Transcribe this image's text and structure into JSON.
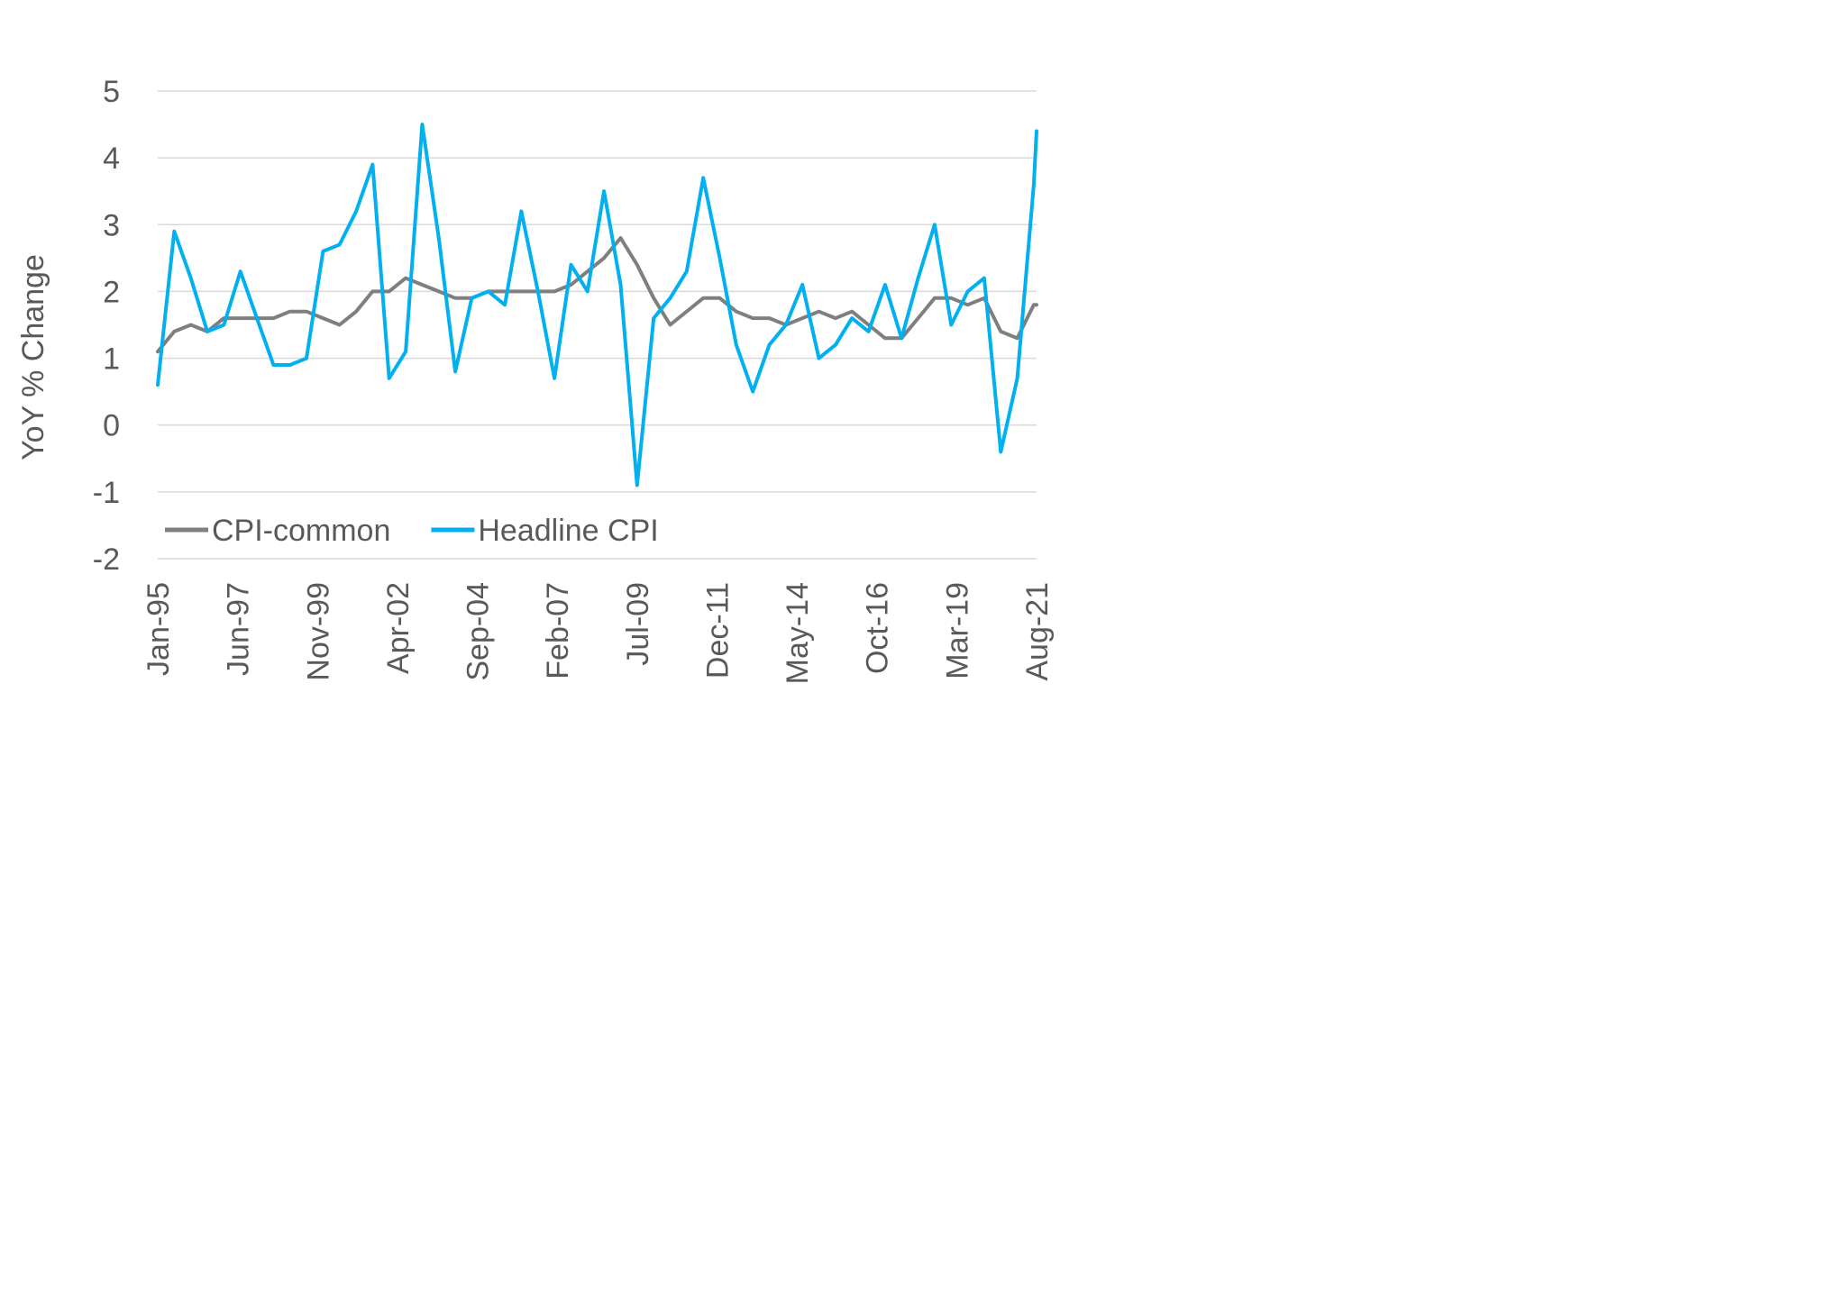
{
  "chart_data": {
    "type": "line",
    "ylabel": "YoY % Change",
    "xlabel": "",
    "ylim": [
      -2,
      5
    ],
    "yticks": [
      "-2",
      "-1",
      "0",
      "1",
      "2",
      "3",
      "4",
      "5"
    ],
    "x_start": "Jan-95",
    "x_end": "Aug-21",
    "x_tick_labels": [
      "Jan-95",
      "Jun-97",
      "Nov-99",
      "Apr-02",
      "Sep-04",
      "Feb-07",
      "Jul-09",
      "Dec-11",
      "May-14",
      "Oct-16",
      "Mar-19",
      "Aug-21"
    ],
    "grid": true,
    "legend_position": "bottom-left",
    "x": [
      "Jan-95",
      "Jul-95",
      "Jan-96",
      "Jul-96",
      "Jan-97",
      "Jul-97",
      "Jan-98",
      "Jul-98",
      "Jan-99",
      "Jul-99",
      "Jan-00",
      "Jul-00",
      "Jan-01",
      "Jul-01",
      "Jan-02",
      "Jul-02",
      "Jan-03",
      "Jul-03",
      "Jan-04",
      "Jul-04",
      "Jan-05",
      "Jul-05",
      "Jan-06",
      "Jul-06",
      "Jan-07",
      "Jul-07",
      "Jan-08",
      "Jul-08",
      "Jan-09",
      "Jul-09",
      "Jan-10",
      "Jul-10",
      "Jan-11",
      "Jul-11",
      "Jan-12",
      "Jul-12",
      "Jan-13",
      "Jul-13",
      "Jan-14",
      "Jul-14",
      "Jan-15",
      "Jul-15",
      "Jan-16",
      "Jul-16",
      "Jan-17",
      "Jul-17",
      "Jan-18",
      "Jul-18",
      "Jan-19",
      "Jul-19",
      "Jan-20",
      "Jul-20",
      "Jan-21",
      "Jul-21",
      "Aug-21"
    ],
    "series": [
      {
        "name": "CPI-common",
        "color": "#7f7f7f",
        "values": [
          1.1,
          1.4,
          1.5,
          1.4,
          1.6,
          1.6,
          1.6,
          1.6,
          1.7,
          1.7,
          1.6,
          1.5,
          1.7,
          2.0,
          2.0,
          2.2,
          2.1,
          2.0,
          1.9,
          1.9,
          2.0,
          2.0,
          2.0,
          2.0,
          2.0,
          2.1,
          2.3,
          2.5,
          2.8,
          2.4,
          1.9,
          1.5,
          1.7,
          1.9,
          1.9,
          1.7,
          1.6,
          1.6,
          1.5,
          1.6,
          1.7,
          1.6,
          1.7,
          1.5,
          1.3,
          1.3,
          1.6,
          1.9,
          1.9,
          1.8,
          1.9,
          1.4,
          1.3,
          1.8,
          1.8
        ]
      },
      {
        "name": "Headline CPI",
        "color": "#00b0f0",
        "values": [
          0.6,
          2.9,
          2.2,
          1.4,
          1.5,
          2.3,
          1.6,
          0.9,
          0.9,
          1.0,
          2.6,
          2.7,
          3.2,
          3.9,
          0.7,
          1.1,
          4.5,
          2.8,
          0.8,
          1.9,
          2.0,
          1.8,
          3.2,
          2.0,
          0.7,
          2.4,
          2.0,
          3.5,
          2.1,
          -0.9,
          1.6,
          1.9,
          2.3,
          3.7,
          2.5,
          1.2,
          0.5,
          1.2,
          1.5,
          2.1,
          1.0,
          1.2,
          1.6,
          1.4,
          2.1,
          1.3,
          2.2,
          3.0,
          1.5,
          2.0,
          2.2,
          -0.4,
          0.7,
          3.6,
          4.4
        ]
      }
    ]
  }
}
